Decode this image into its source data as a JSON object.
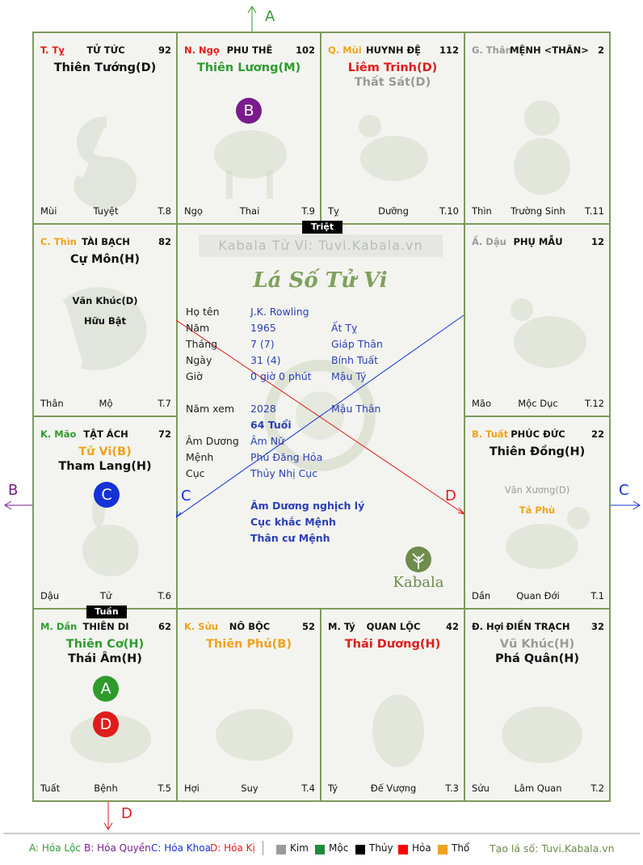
{
  "colors": {
    "green": "#2e9b2e",
    "purple": "#7b1b8e",
    "blue": "#1432d6",
    "red": "#e01b1b",
    "orange": "#f0a21c",
    "gray": "#9a9a9a",
    "can_red": "#e01b1b",
    "can_orange": "#f0a21c",
    "can_green": "#2e9b2e",
    "can_gray": "#9a9a9a",
    "can_black": "#111"
  },
  "arrows": {
    "a": "A",
    "b": "B",
    "c": "C",
    "d": "D"
  },
  "palaces": {
    "ty": {
      "can": "T. Tỵ",
      "name": "TỬ TỨC",
      "num": "92",
      "stars": [
        "Thiên Tướng(D)"
      ],
      "f1": "Mùi",
      "f2": "Tuyệt",
      "f3": "T.8"
    },
    "ngo": {
      "can": "N. Ngọ",
      "name": "PHU THÊ",
      "num": "102",
      "stars": [
        "Thiên Lương(M)"
      ],
      "f1": "Ngọ",
      "f2": "Thai",
      "f3": "T.9",
      "circle": "B"
    },
    "mui": {
      "can": "Q. Mùi",
      "name": "HUYNH ĐỆ",
      "num": "112",
      "stars": [
        "Liêm Trinh(D)",
        "Thất Sát(D)"
      ],
      "f1": "Tỵ",
      "f2": "Dưỡng",
      "f3": "T.10"
    },
    "than": {
      "can": "G. Thân",
      "name": "MỆNH <THÂN>",
      "num": "2",
      "f1": "Thìn",
      "f2": "Trường Sinh",
      "f3": "T.11"
    },
    "thin": {
      "can": "C. Thìn",
      "name": "TÀI BẠCH",
      "num": "82",
      "stars": [
        "Cự Môn(H)"
      ],
      "minor": [
        "Văn Khúc(D)",
        "Hữu Bật"
      ],
      "f1": "Thân",
      "f2": "Mộ",
      "f3": "T.7"
    },
    "dau": {
      "can": "Ấ. Dậu",
      "name": "PHỤ MẪU",
      "num": "12",
      "f1": "Mão",
      "f2": "Mộc Dục",
      "f3": "T.12"
    },
    "mao": {
      "can": "K. Mão",
      "name": "TẬT ÁCH",
      "num": "72",
      "stars": [
        "Tử Vi(B)",
        "Tham Lang(H)"
      ],
      "f1": "Dậu",
      "f2": "Tử",
      "f3": "T.6",
      "circle": "C"
    },
    "tuat": {
      "can": "B. Tuất",
      "name": "PHÚC ĐỨC",
      "num": "22",
      "stars": [
        "Thiên Đồng(H)"
      ],
      "minor": [
        "Văn Xương(D)",
        "Tả Phù"
      ],
      "f1": "Dần",
      "f2": "Quan Đới",
      "f3": "T.1"
    },
    "dan": {
      "can": "M. Dần",
      "name": "THIÊN DI",
      "num": "62",
      "stars": [
        "Thiên Cơ(H)",
        "Thái Âm(H)"
      ],
      "f1": "Tuất",
      "f2": "Bệnh",
      "f3": "T.5",
      "circle1": "A",
      "circle2": "D"
    },
    "suu": {
      "can": "K. Sửu",
      "name": "NÔ BỘC",
      "num": "52",
      "stars": [
        "Thiên Phủ(B)"
      ],
      "f1": "Hợi",
      "f2": "Suy",
      "f3": "T.4"
    },
    "ty2": {
      "can": "M. Tý",
      "name": "QUAN LỘC",
      "num": "42",
      "stars": [
        "Thái Dương(H)"
      ],
      "f1": "Tý",
      "f2": "Đế Vượng",
      "f3": "T.3"
    },
    "hoi": {
      "can": "Đ. Hợi",
      "name": "ĐIỀN TRẠCH",
      "num": "32",
      "stars": [
        "Vũ Khúc(H)",
        "Phá Quân(H)"
      ],
      "f1": "Sửu",
      "f2": "Lâm Quan",
      "f3": "T.2"
    }
  },
  "tags": {
    "triet": "Triệt",
    "tuan": "Tuần"
  },
  "center": {
    "watermark": "Kabala Tử Vi: Tuvi.Kabala.vn",
    "title": "Lá Số Tử Vi",
    "labels": {
      "name": "Họ tên",
      "year": "Năm",
      "month": "Tháng",
      "day": "Ngày",
      "hour": "Giờ",
      "view": "Năm xem",
      "amduong": "Âm Dương",
      "menh": "Mệnh",
      "cuc": "Cục"
    },
    "name": "J.K. Rowling",
    "year": "1965",
    "year_cc": "Ất Tỵ",
    "month": "7  (7)",
    "month_cc": "Giáp Thân",
    "day": "31  (4)",
    "day_cc": "Bính Tuất",
    "hour": "0 giờ 0 phút",
    "hour_cc": "Mậu Tý",
    "view": "2028",
    "view_cc": "Mậu Thân",
    "age": "64 Tuổi",
    "amduong": "Âm Nữ",
    "menh": "Phú Đăng Hỏa",
    "cuc": "Thủy Nhị Cục",
    "note1": "Âm Dương nghịch lý",
    "note2": "Cục khắc Mệnh",
    "note3": "Thân cư Mệnh",
    "logo": "Kabala"
  },
  "legend": {
    "a": "A: Hóa Lộc",
    "b": "B: Hóa Quyền",
    "c": "C: Hóa Khoa",
    "d": "D: Hóa Kị",
    "kim": "Kim",
    "moc": "Mộc",
    "thuy": "Thủy",
    "hoa": "Hỏa",
    "tho": "Thổ",
    "site": "Tạo lá số: Tuvi.Kabala.vn"
  }
}
